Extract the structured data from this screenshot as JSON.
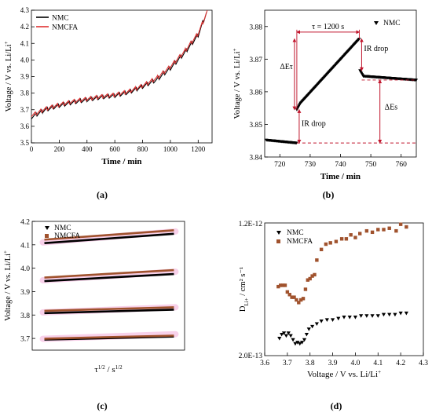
{
  "figure": {
    "panel_labels": [
      {
        "text": "(a)"
      },
      {
        "text": "(b)"
      },
      {
        "text": "(c)"
      },
      {
        "text": "(d)"
      }
    ]
  },
  "chart_data": [
    {
      "type": "line",
      "title": "",
      "xlabel": "Time / min",
      "ylabel": "Voltage / V vs. Li/Li",
      "ylabel_sup": "+",
      "xlim": [
        0,
        1300
      ],
      "ylim": [
        3.5,
        4.3
      ],
      "xticks": [
        "0",
        "200",
        "400",
        "600",
        "800",
        "1000",
        "1200"
      ],
      "yticks": [
        "3.5",
        "3.6",
        "3.7",
        "3.8",
        "3.9",
        "4.0",
        "4.1",
        "4.2",
        "4.3"
      ],
      "legend_position": "top-left",
      "sawtooth": {
        "period": 40,
        "amplitude": 0.022
      },
      "series": [
        {
          "name": "NMC",
          "color": "#000000",
          "base": [
            [
              0,
              3.655
            ],
            [
              100,
              3.7
            ],
            [
              200,
              3.725
            ],
            [
              300,
              3.745
            ],
            [
              400,
              3.76
            ],
            [
              500,
              3.775
            ],
            [
              600,
              3.785
            ],
            [
              700,
              3.805
            ],
            [
              800,
              3.84
            ],
            [
              900,
              3.88
            ],
            [
              1000,
              3.95
            ],
            [
              1100,
              4.04
            ],
            [
              1200,
              4.15
            ],
            [
              1260,
              4.285
            ]
          ]
        },
        {
          "name": "NMCFA",
          "color": "#e03030",
          "base": [
            [
              0,
              3.665
            ],
            [
              100,
              3.705
            ],
            [
              200,
              3.73
            ],
            [
              300,
              3.75
            ],
            [
              400,
              3.765
            ],
            [
              500,
              3.78
            ],
            [
              600,
              3.79
            ],
            [
              700,
              3.81
            ],
            [
              800,
              3.845
            ],
            [
              900,
              3.89
            ],
            [
              1000,
              3.96
            ],
            [
              1100,
              4.05
            ],
            [
              1200,
              4.16
            ],
            [
              1265,
              4.29
            ]
          ]
        }
      ]
    },
    {
      "type": "scatter",
      "title": "",
      "xlabel": "Time / min",
      "ylabel": "Voltage / V vs. Li/Li",
      "ylabel_sup": "+",
      "xlim": [
        715,
        765
      ],
      "ylim": [
        3.84,
        3.885
      ],
      "xticks": [
        "720",
        "730",
        "740",
        "750",
        "760"
      ],
      "yticks": [
        "3.84",
        "3.85",
        "3.86",
        "3.87",
        "3.88"
      ],
      "legend_position": "top-right",
      "series": [
        {
          "name": "NMC",
          "color": "#000000",
          "segments": [
            {
              "x": [
                715.5,
                725.5
              ],
              "y": [
                3.8452,
                3.8443
              ]
            },
            {
              "x": [
                725.6,
                726.8
              ],
              "y": [
                3.8545,
                3.8565
              ]
            },
            {
              "x": [
                726.8,
                746.2
              ],
              "y": [
                3.8565,
                3.8762
              ]
            },
            {
              "x": [
                746.4,
                747.5
              ],
              "y": [
                3.8665,
                3.8648
              ]
            },
            {
              "x": [
                747.5,
                765
              ],
              "y": [
                3.8648,
                3.8636
              ]
            }
          ]
        }
      ],
      "annotations": {
        "tau": "τ = 1200 s",
        "delta_e_tau": "ΔEτ",
        "ir_drop_top": "IR drop",
        "ir_drop_bottom": "IR drop",
        "delta_es": "ΔEs",
        "dashed_levels": [
          3.8443,
          3.8636
        ]
      }
    },
    {
      "type": "line",
      "title": "",
      "xlabel": "τ",
      "xlabel_sup": "1/2",
      "xlabel_mid": " / s",
      "xlabel_sup2": "1/2",
      "ylabel": "Voltage / V vs. Li/Li",
      "ylabel_sup": "+",
      "xlim": [
        0,
        1
      ],
      "ylim": [
        3.65,
        4.2
      ],
      "yticks": [
        "3.7",
        "3.8",
        "3.9",
        "4.0",
        "4.1",
        "4.2"
      ],
      "legend_position": "top-left",
      "series": [
        {
          "name": "NMC",
          "color": "#000000",
          "lines": [
            [
              3.695,
              3.708
            ],
            [
              3.808,
              3.823
            ],
            [
              3.945,
              3.975
            ],
            [
              4.107,
              4.147
            ]
          ]
        },
        {
          "name": "NMCFA",
          "color": "#a0522d",
          "lines": [
            [
              3.699,
              3.712
            ],
            [
              3.818,
              3.833
            ],
            [
              3.96,
              3.992
            ],
            [
              4.122,
              4.162
            ]
          ]
        }
      ]
    },
    {
      "type": "scatter",
      "title": "",
      "xlabel": "Voltage / V vs. Li/Li",
      "xlabel_sup": "+",
      "ylabel": "D",
      "ylabel_sub": "Li+",
      "ylabel_unit": " / cm² s⁻¹",
      "xlim": [
        3.6,
        4.3
      ],
      "ylim": [
        0,
        1
      ],
      "yticks": [
        "2.0E-13",
        "1.2E-12"
      ],
      "xticks": [
        "3.6",
        "3.7",
        "3.8",
        "3.9",
        "4.0",
        "4.1",
        "4.2",
        "4.3"
      ],
      "legend_position": "top-left",
      "series": [
        {
          "name": "NMC",
          "color": "#000000",
          "marker": "triangle-down",
          "points": [
            [
              3.665,
              0.13
            ],
            [
              3.675,
              0.16
            ],
            [
              3.685,
              0.17
            ],
            [
              3.695,
              0.15
            ],
            [
              3.705,
              0.17
            ],
            [
              3.715,
              0.15
            ],
            [
              3.725,
              0.12
            ],
            [
              3.735,
              0.09
            ],
            [
              3.745,
              0.1
            ],
            [
              3.755,
              0.09
            ],
            [
              3.765,
              0.1
            ],
            [
              3.775,
              0.12
            ],
            [
              3.785,
              0.16
            ],
            [
              3.795,
              0.2
            ],
            [
              3.81,
              0.22
            ],
            [
              3.83,
              0.24
            ],
            [
              3.85,
              0.26
            ],
            [
              3.875,
              0.27
            ],
            [
              3.9,
              0.27
            ],
            [
              3.925,
              0.28
            ],
            [
              3.95,
              0.29
            ],
            [
              3.975,
              0.29
            ],
            [
              4.0,
              0.29
            ],
            [
              4.025,
              0.3
            ],
            [
              4.05,
              0.3
            ],
            [
              4.075,
              0.3
            ],
            [
              4.1,
              0.3
            ],
            [
              4.125,
              0.31
            ],
            [
              4.15,
              0.31
            ],
            [
              4.175,
              0.31
            ],
            [
              4.2,
              0.32
            ],
            [
              4.225,
              0.32
            ]
          ]
        },
        {
          "name": "NMCFA",
          "color": "#a0522d",
          "marker": "square",
          "points": [
            [
              3.66,
              0.52
            ],
            [
              3.67,
              0.53
            ],
            [
              3.68,
              0.53
            ],
            [
              3.69,
              0.53
            ],
            [
              3.7,
              0.48
            ],
            [
              3.71,
              0.46
            ],
            [
              3.72,
              0.44
            ],
            [
              3.73,
              0.44
            ],
            [
              3.74,
              0.42
            ],
            [
              3.75,
              0.4
            ],
            [
              3.76,
              0.42
            ],
            [
              3.77,
              0.43
            ],
            [
              3.78,
              0.5
            ],
            [
              3.79,
              0.57
            ],
            [
              3.8,
              0.58
            ],
            [
              3.81,
              0.6
            ],
            [
              3.82,
              0.61
            ],
            [
              3.83,
              0.72
            ],
            [
              3.85,
              0.8
            ],
            [
              3.87,
              0.84
            ],
            [
              3.89,
              0.85
            ],
            [
              3.915,
              0.86
            ],
            [
              3.94,
              0.88
            ],
            [
              3.96,
              0.88
            ],
            [
              3.98,
              0.91
            ],
            [
              4.0,
              0.89
            ],
            [
              4.02,
              0.92
            ],
            [
              4.05,
              0.94
            ],
            [
              4.075,
              0.93
            ],
            [
              4.1,
              0.95
            ],
            [
              4.125,
              0.95
            ],
            [
              4.15,
              0.96
            ],
            [
              4.18,
              0.94
            ],
            [
              4.2,
              0.99
            ],
            [
              4.225,
              0.97
            ]
          ]
        }
      ]
    }
  ]
}
